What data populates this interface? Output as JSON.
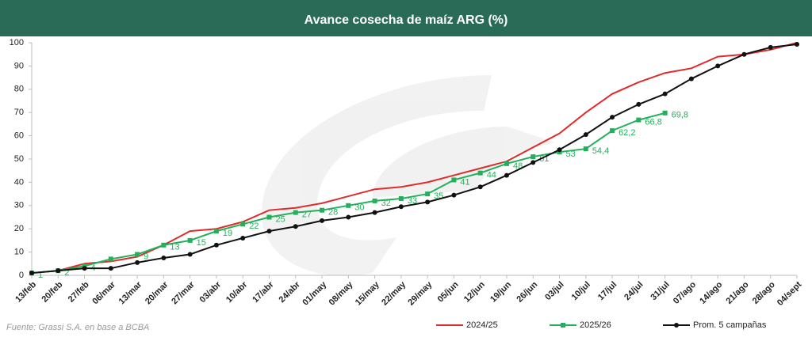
{
  "chart_data": {
    "type": "line",
    "title": "Avance cosecha de maíz ARG (%)",
    "source": "Fuente: Grassi S.A. en base a BCBA",
    "categories": [
      "13/feb",
      "20/feb",
      "27/feb",
      "06/mar",
      "13/mar",
      "20/mar",
      "27/mar",
      "03/abr",
      "10/abr",
      "17/abr",
      "24/abr",
      "01/may",
      "08/may",
      "15/may",
      "22/may",
      "29/may",
      "05/jun",
      "12/jun",
      "19/jun",
      "26/jun",
      "03/jul",
      "10/jul",
      "17/jul",
      "24/jul",
      "31/jul",
      "07/ago",
      "14/ago",
      "21/ago",
      "28/ago",
      "04/sept"
    ],
    "ylim": [
      0,
      100
    ],
    "yticks": [
      0,
      10,
      20,
      30,
      40,
      50,
      60,
      70,
      80,
      90,
      100
    ],
    "grid": false,
    "legend": "bottom",
    "series": [
      {
        "name": "2024/25",
        "color": "#e02b2b",
        "marker": "none",
        "values": [
          1,
          2,
          5,
          6,
          8,
          13,
          19,
          20,
          23,
          28,
          29,
          31,
          34,
          37,
          38,
          40,
          43,
          46,
          49,
          55,
          61,
          70,
          78,
          83,
          87,
          89,
          94,
          95,
          97,
          100
        ]
      },
      {
        "name": "2025/26",
        "color": "#22b05a",
        "marker": "square",
        "values": [
          1,
          2,
          4,
          7,
          9,
          13,
          15,
          19,
          22,
          25,
          27,
          28,
          30,
          32,
          33,
          35,
          41,
          44,
          48,
          51,
          53,
          54.4,
          62.2,
          66.8,
          69.8,
          null,
          null,
          null,
          null,
          null
        ],
        "value_labels": [
          "1",
          "2",
          "4",
          null,
          "9",
          "13",
          "15",
          "19",
          "22",
          "25",
          "27",
          "28",
          "30",
          "32",
          "33",
          "35",
          "41",
          "44",
          "48",
          "51",
          "53",
          "54,4",
          "62,2",
          "66,8",
          "69,8",
          null,
          null,
          null,
          null,
          null
        ]
      },
      {
        "name": "Prom. 5 campañas",
        "color": "#111111",
        "marker": "circle",
        "values": [
          1,
          2,
          3,
          3,
          5.5,
          7.5,
          9,
          13,
          16,
          19,
          21,
          23.5,
          25,
          27,
          29.5,
          31.5,
          34.5,
          38,
          43,
          48.5,
          54,
          60.5,
          68,
          73.5,
          78,
          84.5,
          90,
          95,
          98,
          99.3
        ]
      }
    ]
  }
}
